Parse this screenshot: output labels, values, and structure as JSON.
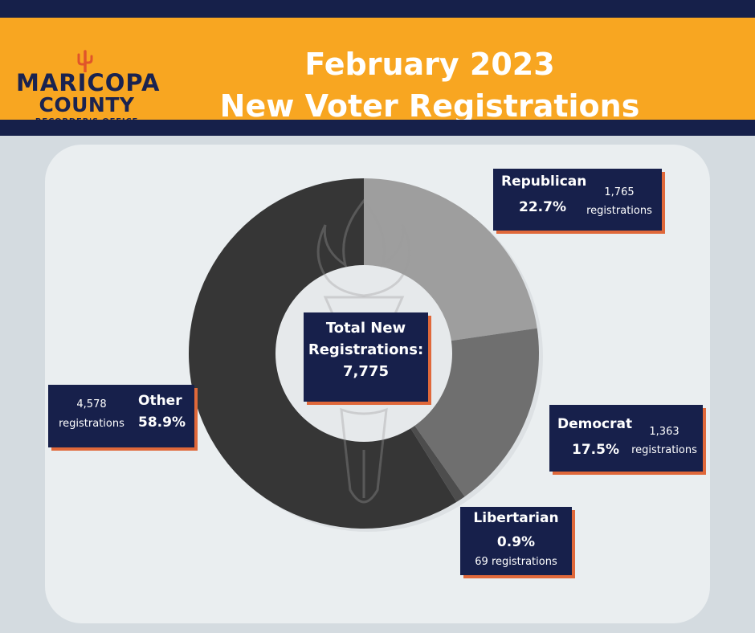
{
  "header": {
    "title_line1": "February 2023",
    "title_line2": "New Voter Registrations"
  },
  "logo": {
    "line1": "MARICOPA",
    "line2": "COUNTY",
    "line3": "RECORDER'S OFFICE"
  },
  "colors": {
    "navy": "#17204b",
    "orange": "#f8a621",
    "accent": "#e0683a",
    "republican": "#9e9e9e",
    "democrat": "#6f6f6f",
    "libertarian": "#4d4d4d",
    "other": "#363636"
  },
  "center": {
    "line1": "Total New",
    "line2": "Registrations:",
    "total": "7,775"
  },
  "labels": {
    "republican": {
      "name": "Republican",
      "pct": "22.7%",
      "count_line1": "1,765",
      "count_line2": "registrations"
    },
    "democrat": {
      "name": "Democrat",
      "pct": "17.5%",
      "count_line1": "1,363",
      "count_line2": "registrations"
    },
    "libertarian": {
      "name": "Libertarian",
      "pct": "0.9%",
      "count_line1": "69 registrations"
    },
    "other": {
      "name": "Other",
      "pct": "58.9%",
      "count_line1": "4,578",
      "count_line2": "registrations"
    }
  },
  "chart_data": {
    "type": "pie",
    "title": "February 2023 New Voter Registrations",
    "total": 7775,
    "categories": [
      "Republican",
      "Democrat",
      "Libertarian",
      "Other"
    ],
    "values": [
      1765,
      1363,
      69,
      4578
    ],
    "percentages": [
      22.7,
      17.5,
      0.9,
      58.9
    ],
    "legend": "none"
  }
}
